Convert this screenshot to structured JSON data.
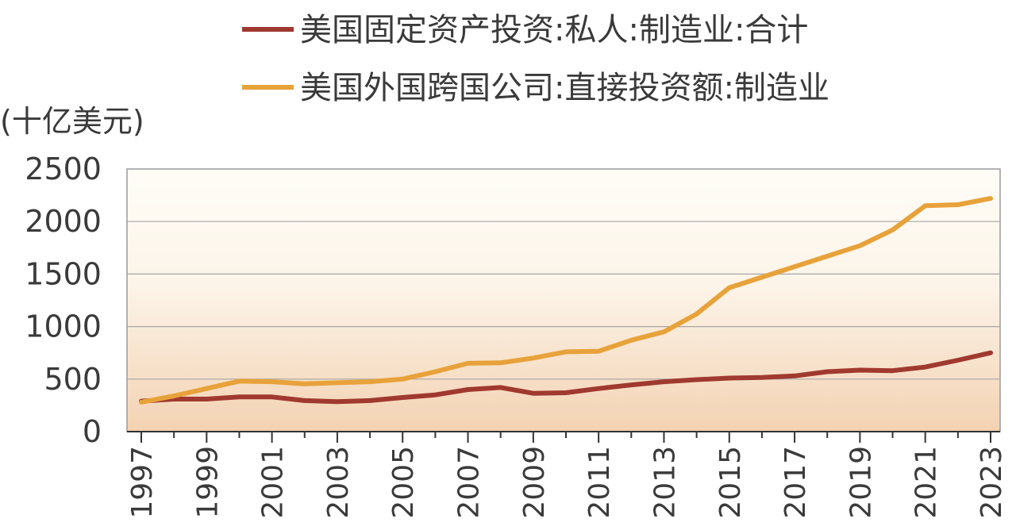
{
  "chart_data": {
    "type": "line",
    "unit_label": "(十亿美元)",
    "x": [
      1997,
      1998,
      1999,
      2000,
      2001,
      2002,
      2003,
      2004,
      2005,
      2006,
      2007,
      2008,
      2009,
      2010,
      2011,
      2012,
      2013,
      2014,
      2015,
      2016,
      2017,
      2018,
      2019,
      2020,
      2021,
      2022,
      2023
    ],
    "x_tick_labels": [
      "1997",
      "1999",
      "2001",
      "2003",
      "2005",
      "2007",
      "2009",
      "2011",
      "2013",
      "2015",
      "2017",
      "2019",
      "2021",
      "2023"
    ],
    "ylim": [
      0,
      2500
    ],
    "y_ticks": [
      0,
      500,
      1000,
      1500,
      2000,
      2500
    ],
    "grid": true,
    "legend_position": "top",
    "series": [
      {
        "name": "美国固定资产投资:私人:制造业:合计",
        "color": "#a0392f",
        "values": [
          290,
          310,
          310,
          330,
          330,
          295,
          285,
          295,
          325,
          350,
          400,
          420,
          365,
          370,
          410,
          445,
          475,
          495,
          510,
          515,
          530,
          570,
          585,
          580,
          615,
          680,
          750
        ]
      },
      {
        "name": "美国外国跨国公司:直接投资额:制造业",
        "color": "#e8a23a",
        "values": [
          280,
          340,
          410,
          480,
          475,
          455,
          465,
          475,
          500,
          570,
          650,
          655,
          700,
          760,
          765,
          870,
          950,
          1120,
          1370,
          1470,
          1570,
          1670,
          1770,
          1920,
          2150,
          2160,
          2220
        ]
      }
    ]
  }
}
